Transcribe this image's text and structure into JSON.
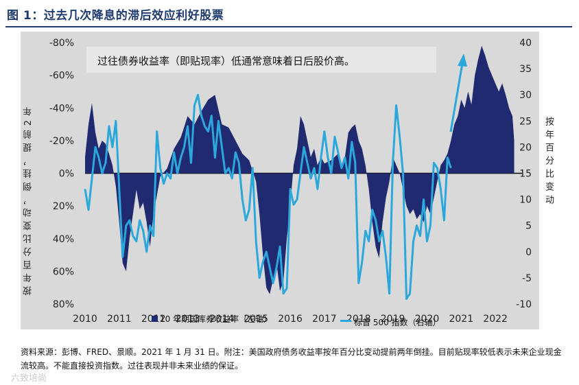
{
  "title": "图 1：过去几次降息的滞后效应利好股票",
  "source_text": "资料来源：彭博、FRED、景顺。2021 年 1 月 31 日。附注：美国政府债务收益率按年百分比变动提前两年倒挂。目前贴现率较低表示未来企业现金流较高。不能直接投资指数。过往表现并非未来业绩的保证。",
  "watermark": "六致培尚",
  "colors": {
    "area": "#1f2a70",
    "line": "#2aa7dc",
    "panel": "#d9d9d9",
    "arrow": "#2aa7dc",
    "title": "#1f3a6e"
  },
  "chart_data": {
    "type": "area+line",
    "annotation": "过往债券收益率（即贴现率）低通常意味着日后股价高。",
    "left_axis_label": "按年百分比变动，倒挂，提前2年",
    "right_axis_label": "按年百分比变动",
    "x_ticks": [
      "2010",
      "2011",
      "2012",
      "2013",
      "2014",
      "2015",
      "2016",
      "2017",
      "2018",
      "2019",
      "2020",
      "2021",
      "2022"
    ],
    "x_range": [
      2010,
      2022.8
    ],
    "left_axis": {
      "ticks": [
        "-80%",
        "-60%",
        "-40%",
        "-20%",
        "0%",
        "20%",
        "40%",
        "60%",
        "80%"
      ],
      "range": [
        -80,
        80
      ],
      "inverted": true
    },
    "right_axis": {
      "ticks": [
        "40",
        "35",
        "30",
        "25",
        "20",
        "15",
        "10",
        "5",
        "0",
        "-5",
        "-10"
      ],
      "range": [
        -10,
        40
      ]
    },
    "series": [
      {
        "name": "10 年期国库券收益率（左轴）",
        "type": "area",
        "axis": "left",
        "x": [
          2010.0,
          2010.1,
          2010.2,
          2010.3,
          2010.4,
          2010.5,
          2010.6,
          2010.7,
          2010.8,
          2010.9,
          2011.0,
          2011.1,
          2011.2,
          2011.3,
          2011.4,
          2011.5,
          2011.6,
          2011.7,
          2011.8,
          2011.9,
          2012.0,
          2012.2,
          2012.4,
          2012.6,
          2012.8,
          2013.0,
          2013.2,
          2013.4,
          2013.6,
          2013.8,
          2014.0,
          2014.2,
          2014.4,
          2014.6,
          2014.8,
          2015.0,
          2015.1,
          2015.2,
          2015.3,
          2015.4,
          2015.5,
          2015.6,
          2015.7,
          2015.8,
          2015.9,
          2016.0,
          2016.1,
          2016.2,
          2016.3,
          2016.4,
          2016.5,
          2016.6,
          2016.7,
          2016.8,
          2016.9,
          2017.0,
          2017.2,
          2017.4,
          2017.5,
          2017.6,
          2017.7,
          2017.8,
          2017.9,
          2018.0,
          2018.1,
          2018.2,
          2018.3,
          2018.4,
          2018.5,
          2018.6,
          2018.7,
          2018.8,
          2018.9,
          2019.0,
          2019.1,
          2019.2,
          2019.3,
          2019.4,
          2019.5,
          2019.6,
          2019.7,
          2019.8,
          2019.9,
          2020.0,
          2020.1,
          2020.2,
          2020.3,
          2020.4,
          2020.5,
          2020.6,
          2020.7,
          2020.8,
          2020.9,
          2021.0,
          2021.1,
          2021.2,
          2021.3,
          2021.4,
          2021.5,
          2021.6,
          2021.7,
          2021.8,
          2021.9,
          2022.0,
          2022.1,
          2022.2,
          2022.3,
          2022.4,
          2022.5,
          2022.55
        ],
        "values": [
          -10,
          -30,
          -43,
          -25,
          -15,
          -20,
          -18,
          -12,
          -5,
          8,
          30,
          55,
          60,
          40,
          25,
          10,
          22,
          18,
          30,
          45,
          25,
          2,
          -3,
          -15,
          -22,
          -35,
          -30,
          -38,
          -45,
          -48,
          -30,
          -28,
          -20,
          -12,
          -8,
          5,
          25,
          50,
          70,
          74,
          65,
          55,
          72,
          66,
          40,
          20,
          -5,
          -15,
          -35,
          -30,
          -20,
          -10,
          -15,
          -5,
          -10,
          -6,
          -8,
          -12,
          -5,
          -10,
          -25,
          -28,
          -30,
          -20,
          -15,
          -5,
          10,
          30,
          45,
          52,
          30,
          15,
          5,
          -10,
          -5,
          0,
          10,
          20,
          25,
          22,
          28,
          25,
          30,
          20,
          25,
          15,
          5,
          -5,
          -8,
          -12,
          -20,
          -30,
          -35,
          -45,
          -40,
          -50,
          -42,
          -60,
          -70,
          -78,
          -72,
          -65,
          -60,
          -55,
          -50,
          -55,
          -48,
          -40,
          -35,
          -20
        ],
        "color": "#1f2a70"
      },
      {
        "name": "标普 500 指数（右轴）",
        "type": "line",
        "axis": "right",
        "x": [
          2010.0,
          2010.1,
          2010.2,
          2010.3,
          2010.4,
          2010.5,
          2010.6,
          2010.7,
          2010.8,
          2010.9,
          2011.0,
          2011.1,
          2011.2,
          2011.3,
          2011.4,
          2011.5,
          2011.6,
          2011.7,
          2011.8,
          2011.9,
          2012.0,
          2012.1,
          2012.2,
          2012.3,
          2012.4,
          2012.5,
          2012.6,
          2012.7,
          2012.8,
          2012.9,
          2013.0,
          2013.1,
          2013.2,
          2013.3,
          2013.4,
          2013.5,
          2013.6,
          2013.7,
          2013.8,
          2013.9,
          2014.0,
          2014.1,
          2014.2,
          2014.3,
          2014.4,
          2014.5,
          2014.6,
          2014.7,
          2014.8,
          2014.9,
          2015.0,
          2015.1,
          2015.2,
          2015.3,
          2015.4,
          2015.5,
          2015.6,
          2015.7,
          2015.8,
          2015.9,
          2016.0,
          2016.1,
          2016.2,
          2016.3,
          2016.4,
          2016.5,
          2016.6,
          2016.7,
          2016.8,
          2016.9,
          2017.0,
          2017.1,
          2017.2,
          2017.3,
          2017.4,
          2017.5,
          2017.6,
          2017.7,
          2017.8,
          2017.9,
          2018.0,
          2018.1,
          2018.2,
          2018.3,
          2018.4,
          2018.5,
          2018.6,
          2018.7,
          2018.8,
          2018.9,
          2019.0,
          2019.1,
          2019.2,
          2019.3,
          2019.4,
          2019.5,
          2019.6,
          2019.7,
          2019.8,
          2019.9,
          2020.0,
          2020.1,
          2020.2,
          2020.3,
          2020.4,
          2020.5,
          2020.6,
          2020.7
        ],
        "values": [
          12,
          8,
          14,
          20,
          18,
          15,
          17,
          24,
          20,
          25,
          12,
          -1,
          5,
          6,
          3,
          2,
          6,
          4,
          0,
          5,
          3,
          23,
          16,
          13,
          15,
          14,
          19,
          15,
          18,
          20,
          24,
          17,
          28,
          30,
          26,
          24,
          23,
          26,
          18,
          25,
          20,
          15,
          16,
          14,
          19,
          17,
          10,
          6,
          8,
          16,
          2,
          -5,
          -2,
          0,
          -3,
          -6,
          -3,
          1,
          -8,
          -7,
          12,
          9,
          10,
          15,
          20,
          17,
          14,
          16,
          12,
          18,
          23,
          18,
          15,
          22,
          19,
          16,
          18,
          14,
          21,
          17,
          -6,
          -2,
          4,
          2,
          8,
          6,
          2,
          4,
          -1,
          -8,
          17,
          28,
          22,
          15,
          -9,
          -8,
          2,
          5,
          3,
          10,
          2,
          5,
          17,
          16,
          12,
          6,
          18,
          16
        ],
        "color": "#2aa7dc"
      }
    ]
  }
}
